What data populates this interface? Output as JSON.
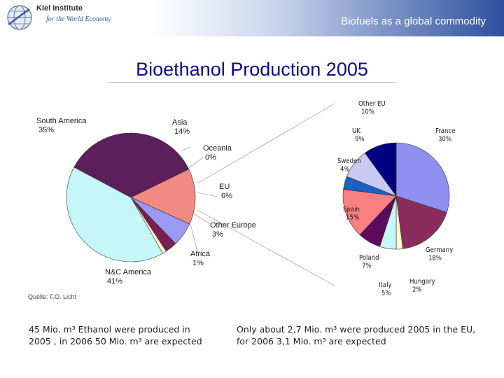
{
  "header": {
    "logo_name": "Kiel Institute",
    "logo_tagline": "for the World Economy",
    "title": "Biofuels as a global commodity"
  },
  "slide_title": "Bioethanol Production 2005",
  "chart_data": [
    {
      "type": "pie",
      "title": "",
      "slices": [
        {
          "label": "Asia",
          "value": 14,
          "value_label": "14%",
          "color": "#f28a83"
        },
        {
          "label": "Oceania",
          "value": 0,
          "value_label": "0%",
          "color": "#cfcfe3"
        },
        {
          "label": "EU",
          "value": 6,
          "value_label": "6%",
          "color": "#9a9af2"
        },
        {
          "label": "Other Europe",
          "value": 3,
          "value_label": "3%",
          "color": "#7a1f4f"
        },
        {
          "label": "Africa",
          "value": 1,
          "value_label": "1%",
          "color": "#fffdd0"
        },
        {
          "label": "N&C America",
          "value": 41,
          "value_label": "41%",
          "color": "#c5f7fa"
        },
        {
          "label": "South America",
          "value": 35,
          "value_label": "35%",
          "color": "#5c1f5c"
        }
      ]
    },
    {
      "type": "pie",
      "title": "",
      "slices": [
        {
          "label": "France",
          "value": 30,
          "value_label": "30%",
          "color": "#8f90f0"
        },
        {
          "label": "Germany",
          "value": 18,
          "value_label": "18%",
          "color": "#8b2d5c"
        },
        {
          "label": "Hungary",
          "value": 2,
          "value_label": "2%",
          "color": "#fffdd0"
        },
        {
          "label": "Italy",
          "value": 5,
          "value_label": "5%",
          "color": "#c5f7fa"
        },
        {
          "label": "Poland",
          "value": 7,
          "value_label": "7%",
          "color": "#5c0a5c"
        },
        {
          "label": "Spain",
          "value": 15,
          "value_label": "15%",
          "color": "#f88080"
        },
        {
          "label": "Sweden",
          "value": 4,
          "value_label": "4%",
          "color": "#1f5fc0"
        },
        {
          "label": "UK",
          "value": 9,
          "value_label": "9%",
          "color": "#c9caf3"
        },
        {
          "label": "Other EU",
          "value": 10,
          "value_label": "10%",
          "color": "#000080"
        }
      ]
    }
  ],
  "source": "Quelle: F.O. Licht",
  "notes": {
    "left": "45 Mio. m³ Ethanol were produced in 2005 , in 2006 50 Mio. m³ are expected",
    "right": "Only about 2,7 Mio. m³ were produced 2005 in the EU, for 2006 3,1 Mio. m³ are expected"
  },
  "colors": {
    "header_gradient_start": "#ffffff",
    "header_gradient_end": "#2d4f9e",
    "title_color": "#0a0a8c"
  }
}
